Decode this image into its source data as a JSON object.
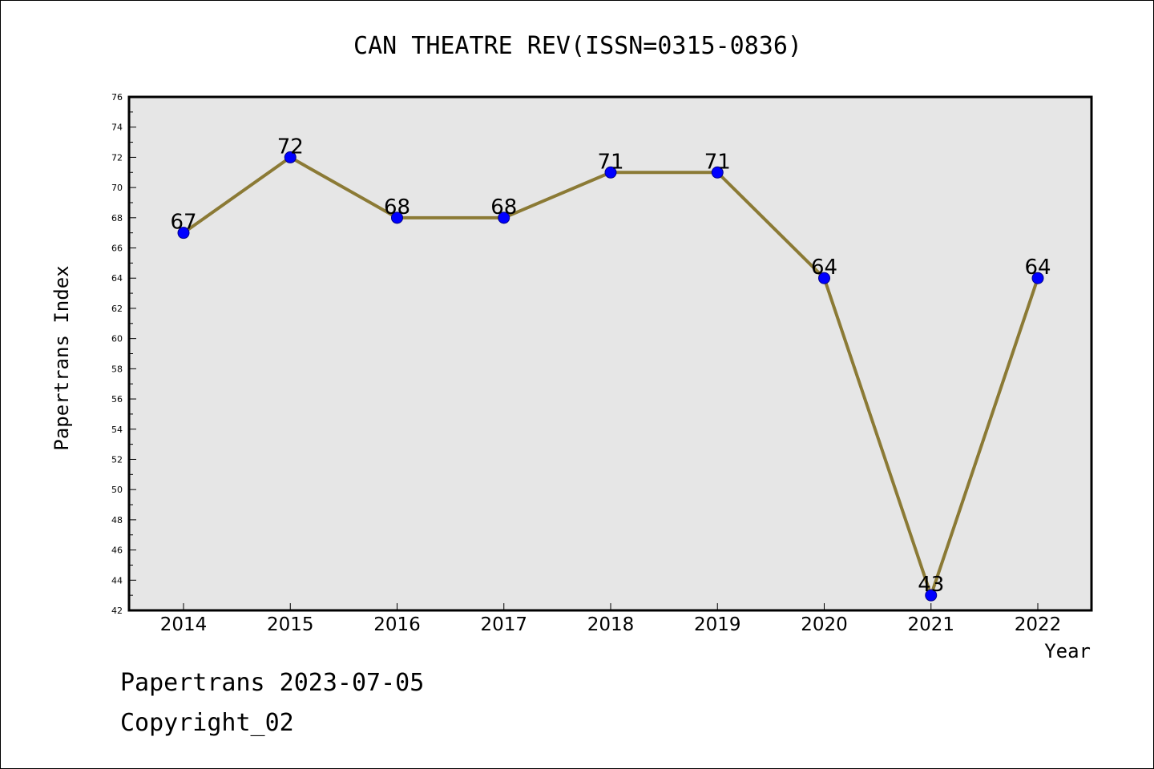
{
  "chart_data": {
    "type": "line",
    "title": "CAN THEATRE REV(ISSN=0315-0836)",
    "xlabel": "Year",
    "ylabel": "Papertrans Index",
    "categories": [
      "2014",
      "2015",
      "2016",
      "2017",
      "2018",
      "2019",
      "2020",
      "2021",
      "2022"
    ],
    "values": [
      67,
      72,
      68,
      68,
      71,
      71,
      64,
      43,
      64
    ],
    "data_labels": [
      "67",
      "72",
      "68",
      "68",
      "71",
      "71",
      "64",
      "43",
      "64"
    ],
    "ylim": [
      42,
      76
    ],
    "yticks": [
      "42",
      "44",
      "46",
      "48",
      "50",
      "52",
      "54",
      "56",
      "58",
      "60",
      "62",
      "64",
      "66",
      "68",
      "70",
      "72",
      "74",
      "76"
    ],
    "grid": false,
    "line_color": "#8b7a35",
    "marker_color": "#0000ff",
    "plot_background": "#e6e6e6"
  },
  "footer": {
    "line1": "Papertrans 2023-07-05",
    "line2": "Copyright_02"
  }
}
